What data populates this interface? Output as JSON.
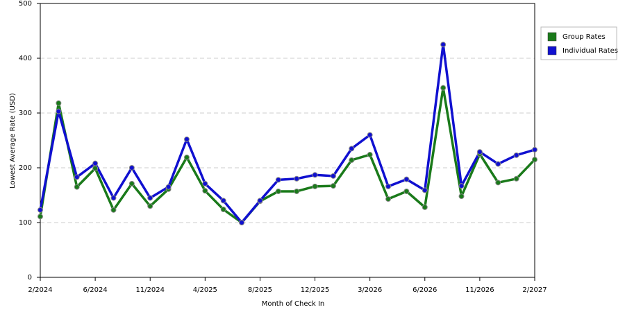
{
  "chart_data": {
    "type": "line",
    "x_label": "Month of Check In",
    "y_label": "Lowest Average Rate (USD)",
    "categories": [
      "2/2024",
      null,
      null,
      "6/2024",
      null,
      null,
      "11/2024",
      null,
      null,
      "4/2025",
      null,
      null,
      "8/2025",
      null,
      null,
      "12/2025",
      null,
      null,
      "3/2026",
      null,
      null,
      "6/2026",
      null,
      null,
      "11/2026",
      null,
      null,
      "2/2027"
    ],
    "series": [
      {
        "name": "Group Rates",
        "color": "#1a7a1a",
        "values": [
          111,
          318,
          165,
          199,
          123,
          171,
          130,
          161,
          219,
          158,
          124,
          100,
          139,
          157,
          157,
          166,
          167,
          214,
          224,
          143,
          157,
          128,
          346,
          148,
          225,
          173,
          180,
          215
        ]
      },
      {
        "name": "Individual Rates",
        "color": "#1010d0",
        "values": [
          123,
          303,
          183,
          208,
          145,
          200,
          145,
          165,
          252,
          171,
          140,
          100,
          140,
          178,
          180,
          187,
          185,
          235,
          260,
          166,
          179,
          159,
          425,
          167,
          229,
          207,
          223,
          233
        ]
      }
    ],
    "ylim": [
      0,
      500
    ],
    "yticks": [
      0,
      100,
      200,
      300,
      400,
      500
    ],
    "grid": true
  }
}
